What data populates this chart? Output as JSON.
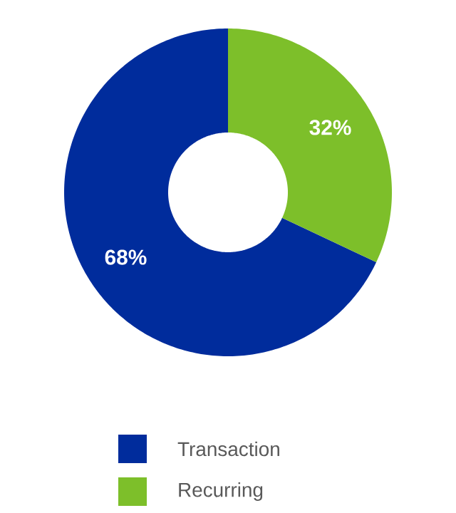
{
  "chart_data": {
    "type": "donut",
    "categories": [
      "Transaction",
      "Recurring"
    ],
    "values": [
      68,
      32
    ],
    "colors": [
      "#002c9c",
      "#7dbf2a"
    ],
    "value_labels": [
      "68%",
      "32%"
    ],
    "legend": "bottom"
  }
}
